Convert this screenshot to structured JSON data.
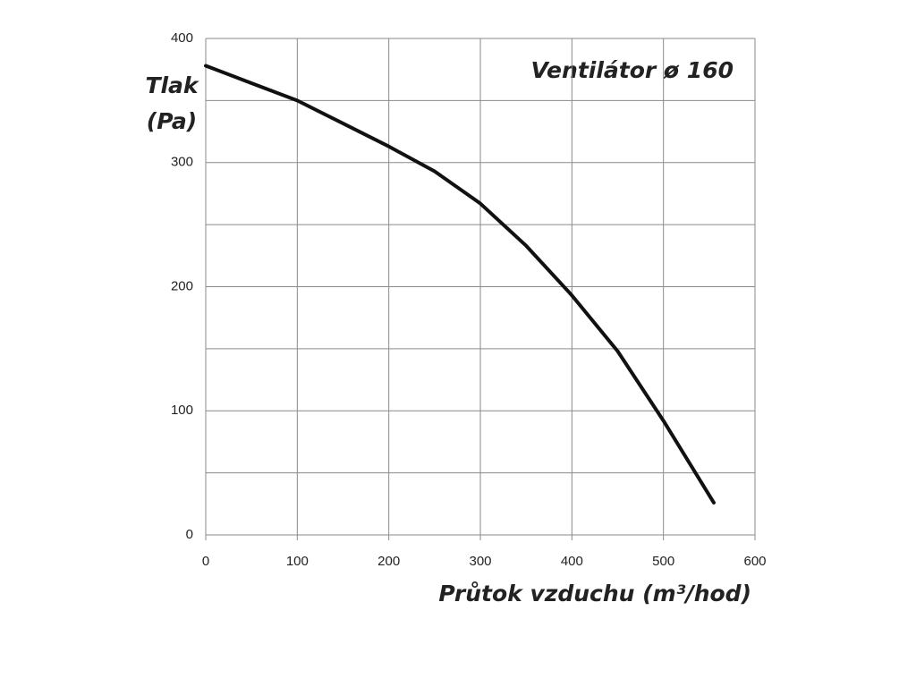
{
  "chart_data": {
    "type": "line",
    "title": "Ventilátor ø 160",
    "ylabel": [
      "Tlak",
      "(Pa)"
    ],
    "xlabel": "Průtok vzduchu (m³/hod)",
    "x": [
      0,
      50,
      100,
      200,
      250,
      300,
      350,
      400,
      450,
      500,
      555
    ],
    "series": [
      {
        "color": "#111111",
        "values": [
          378,
          364,
          350,
          313,
          293,
          267,
          233,
          193,
          148,
          92,
          26
        ]
      }
    ],
    "xlim": [
      0,
      600
    ],
    "xticks": [
      0,
      100,
      200,
      300,
      400,
      500,
      600
    ],
    "ylim": [
      0,
      400
    ],
    "yticks": [
      0,
      100,
      200,
      300,
      400
    ],
    "yminorticks": [
      50,
      150,
      250,
      350
    ],
    "grid": true
  }
}
